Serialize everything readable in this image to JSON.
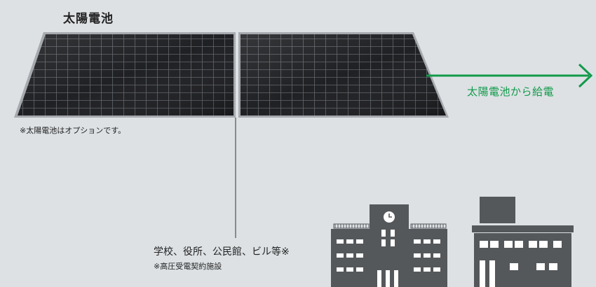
{
  "solar": {
    "title": "太陽電池",
    "note": "※太陽電池はオプションです。"
  },
  "supply": {
    "label": "太陽電池から給電",
    "color": "#129a4b"
  },
  "facilities": {
    "label": "学校、役所、公民館、ビル等※",
    "note": "※高圧受電契約施設"
  },
  "icons": [
    "solar-panel-icon",
    "school-building-icon",
    "office-building-icon",
    "arrow-right-icon"
  ]
}
